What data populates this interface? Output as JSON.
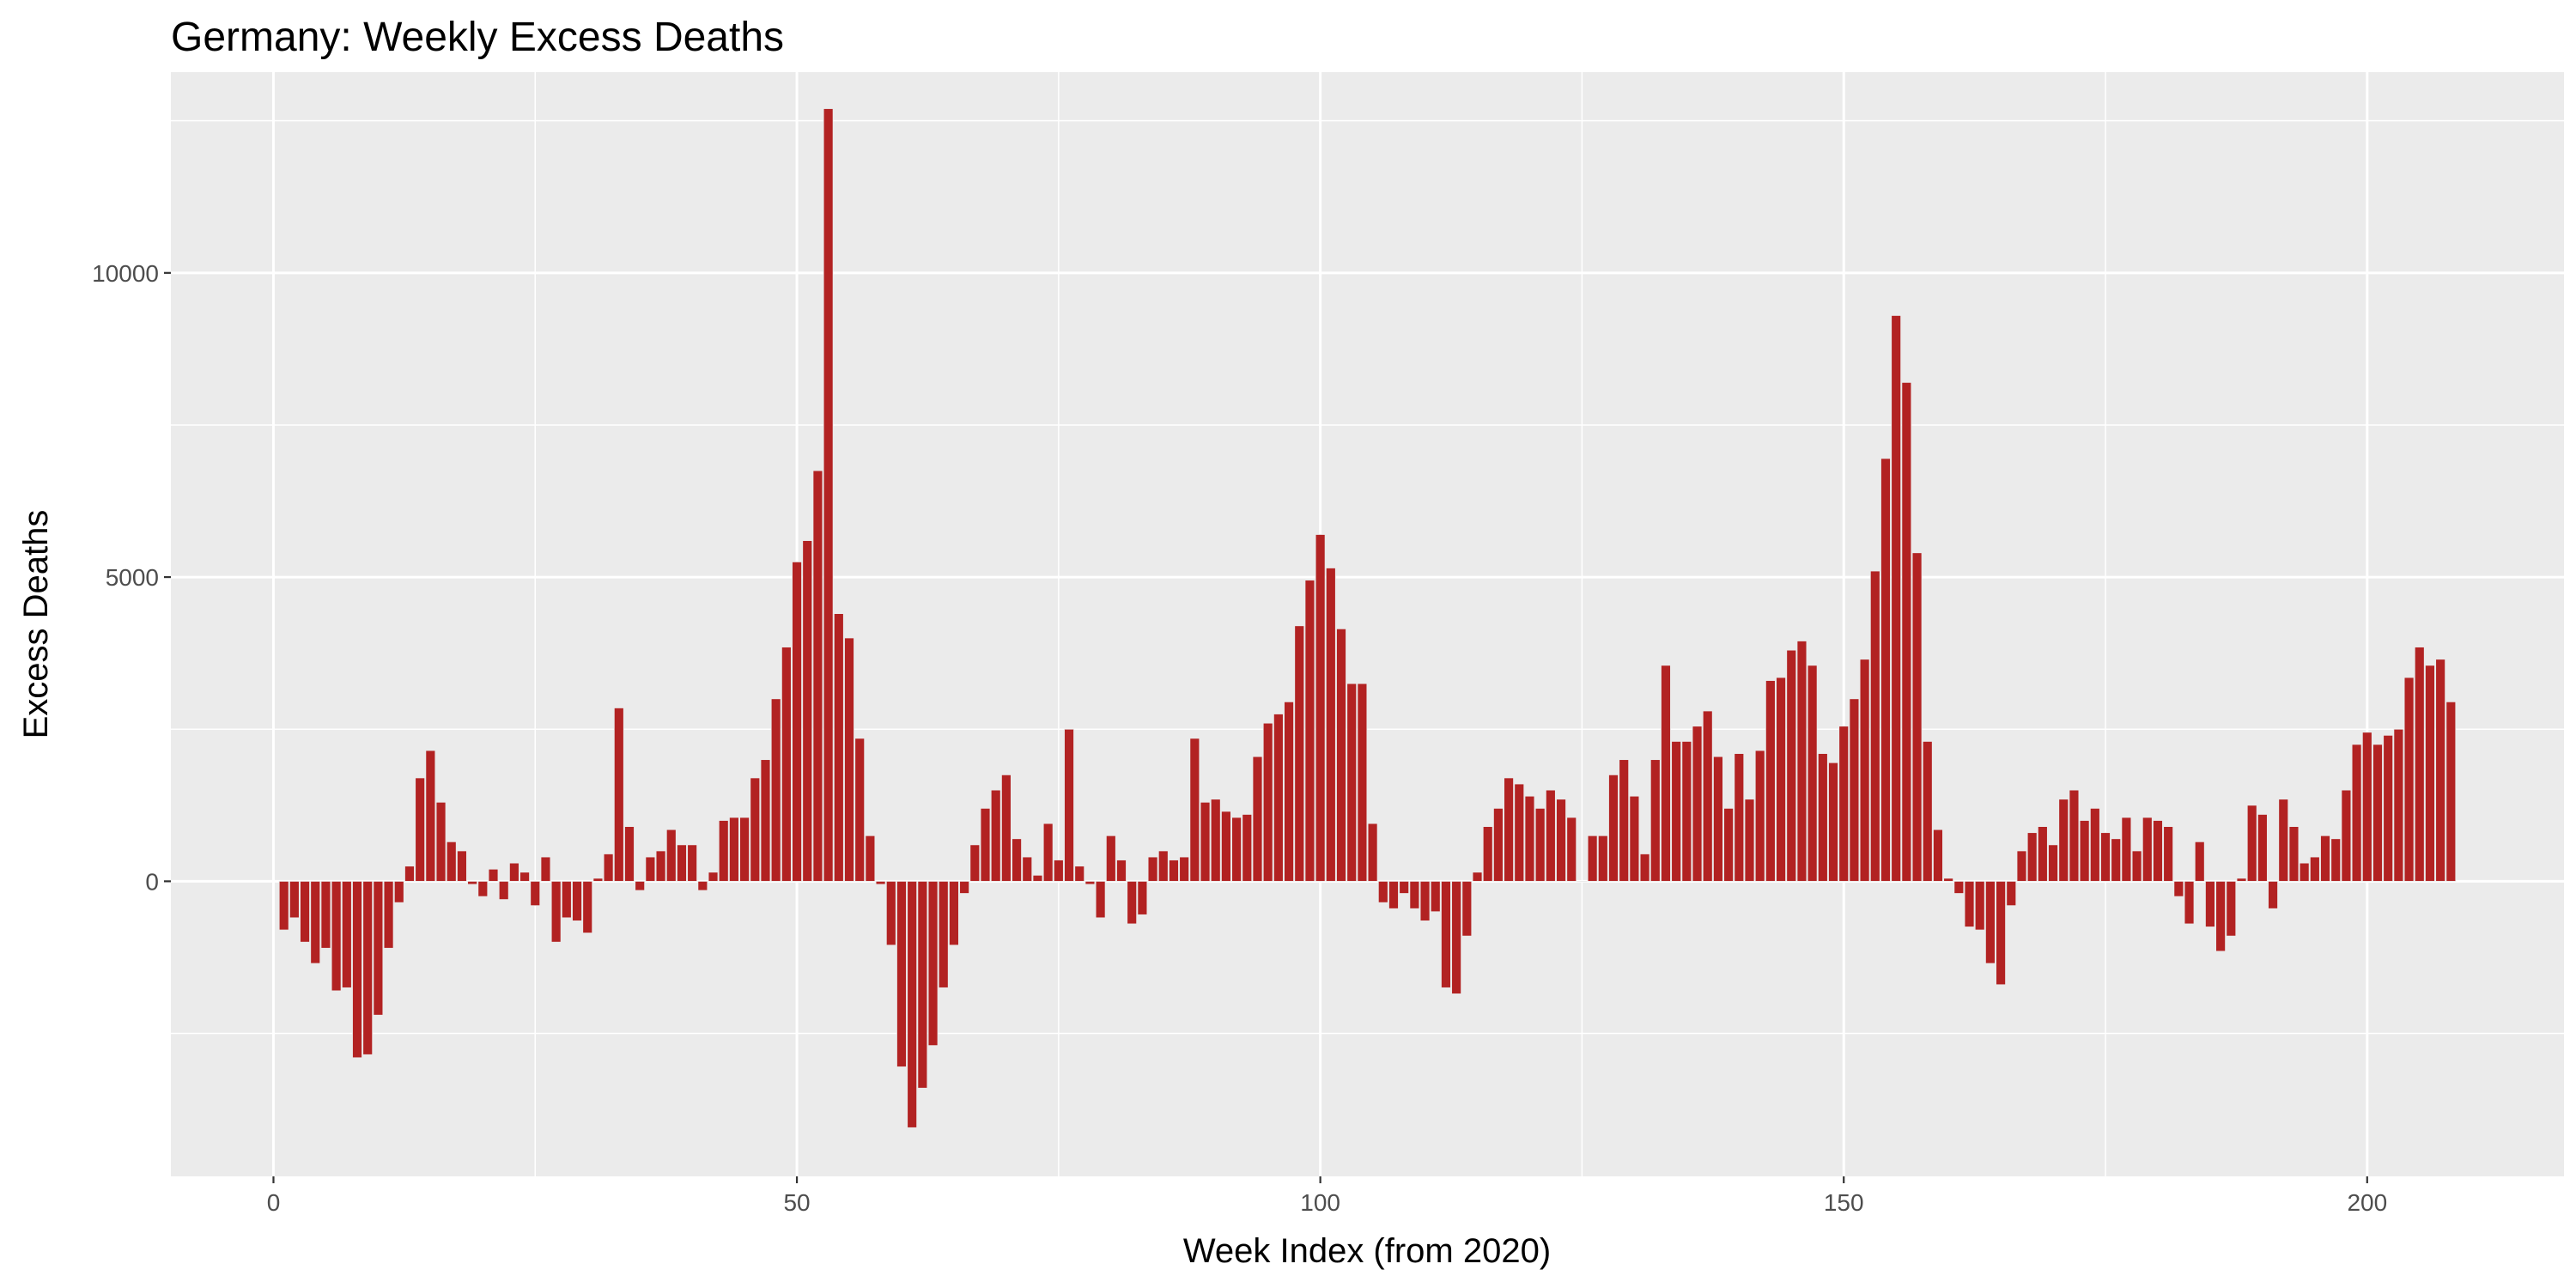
{
  "chart_data": {
    "type": "bar",
    "title": "Germany: Weekly Excess Deaths",
    "xlabel": "Week Index (from 2020)",
    "ylabel": "Excess Deaths",
    "xlim": [
      -9.8,
      218.8
    ],
    "ylim": [
      -4850,
      13300
    ],
    "x_ticks": [
      0,
      50,
      100,
      150,
      200
    ],
    "x_tick_labels": [
      "0",
      "50",
      "100",
      "150",
      "200"
    ],
    "y_ticks": [
      0,
      5000,
      10000
    ],
    "y_tick_labels": [
      "0",
      "5000",
      "10000"
    ],
    "grid": true,
    "legend": "none",
    "bar_color": "#b22222",
    "bar_outline_color": "#ebebeb",
    "panel_color": "#ebebeb",
    "x": [
      1,
      2,
      3,
      4,
      5,
      6,
      7,
      8,
      9,
      10,
      11,
      12,
      13,
      14,
      15,
      16,
      17,
      18,
      19,
      20,
      21,
      22,
      23,
      24,
      25,
      26,
      27,
      28,
      29,
      30,
      31,
      32,
      33,
      34,
      35,
      36,
      37,
      38,
      39,
      40,
      41,
      42,
      43,
      44,
      45,
      46,
      47,
      48,
      49,
      50,
      51,
      52,
      53,
      54,
      55,
      56,
      57,
      58,
      59,
      60,
      61,
      62,
      63,
      64,
      65,
      66,
      67,
      68,
      69,
      70,
      71,
      72,
      73,
      74,
      75,
      76,
      77,
      78,
      79,
      80,
      81,
      82,
      83,
      84,
      85,
      86,
      87,
      88,
      89,
      90,
      91,
      92,
      93,
      94,
      95,
      96,
      97,
      98,
      99,
      100,
      101,
      102,
      103,
      104,
      105,
      106,
      107,
      108,
      109,
      110,
      111,
      112,
      113,
      114,
      115,
      116,
      117,
      118,
      119,
      120,
      121,
      122,
      123,
      124,
      125,
      126,
      127,
      128,
      129,
      130,
      131,
      132,
      133,
      134,
      135,
      136,
      137,
      138,
      139,
      140,
      141,
      142,
      143,
      144,
      145,
      146,
      147,
      148,
      149,
      150,
      151,
      152,
      153,
      154,
      155,
      156,
      157,
      158,
      159,
      160,
      161,
      162,
      163,
      164,
      165,
      166,
      167,
      168,
      169,
      170,
      171,
      172,
      173,
      174,
      175,
      176,
      177,
      178,
      179,
      180,
      181,
      182,
      183,
      184,
      185,
      186,
      187,
      188,
      189,
      190,
      191,
      192,
      193,
      194,
      195,
      196,
      197,
      198,
      199,
      200,
      201,
      202,
      203,
      204,
      205,
      206,
      207,
      208
    ],
    "values": [
      -800,
      -600,
      -1000,
      -1350,
      -1100,
      -1800,
      -1750,
      -2900,
      -2850,
      -2200,
      -1100,
      -350,
      250,
      1700,
      2150,
      1300,
      650,
      500,
      -50,
      -250,
      200,
      -300,
      300,
      150,
      -400,
      400,
      -1000,
      -600,
      -650,
      -850,
      50,
      450,
      2850,
      900,
      -150,
      400,
      500,
      850,
      600,
      600,
      -150,
      150,
      1000,
      1050,
      1050,
      1700,
      2000,
      3000,
      3850,
      5250,
      5600,
      6750,
      12700,
      4400,
      4000,
      2350,
      750,
      -50,
      -1050,
      -3050,
      -4050,
      -3400,
      -2700,
      -1750,
      -1050,
      -200,
      600,
      1200,
      1500,
      1750,
      700,
      400,
      100,
      950,
      350,
      2500,
      250,
      -50,
      -600,
      750,
      350,
      -700,
      -550,
      400,
      500,
      350,
      400,
      2350,
      1300,
      1350,
      1150,
      1050,
      1100,
      2050,
      2600,
      2750,
      2950,
      4200,
      4950,
      5700,
      5150,
      4150,
      3250,
      3250,
      950,
      -350,
      -450,
      -200,
      -450,
      -650,
      -500,
      -1750,
      -1850,
      -900,
      150,
      900,
      1200,
      1700,
      1600,
      1400,
      1200,
      1500,
      1350,
      1050,
      0,
      750,
      750,
      1750,
      2000,
      1400,
      450,
      2000,
      3550,
      2300,
      2300,
      2550,
      2800,
      2050,
      1200,
      2100,
      1350,
      2150,
      3300,
      3350,
      3800,
      3950,
      3550,
      2100,
      1950,
      2550,
      3000,
      3650,
      5100,
      6950,
      9300,
      8200,
      5400,
      2300,
      850,
      50,
      -200,
      -750,
      -800,
      -1350,
      -1700,
      -400,
      500,
      800,
      900,
      600,
      1350,
      1500,
      1000,
      1200,
      800,
      700,
      1050,
      500,
      1050,
      1000,
      900,
      -250,
      -700,
      650,
      -750,
      -1150,
      -900,
      50,
      1250,
      1100,
      -450,
      1350,
      900,
      300,
      400,
      750,
      700,
      1500,
      2250,
      2450,
      2250,
      2400,
      2500,
      3350,
      3850,
      3550,
      3650,
      2950
    ]
  }
}
